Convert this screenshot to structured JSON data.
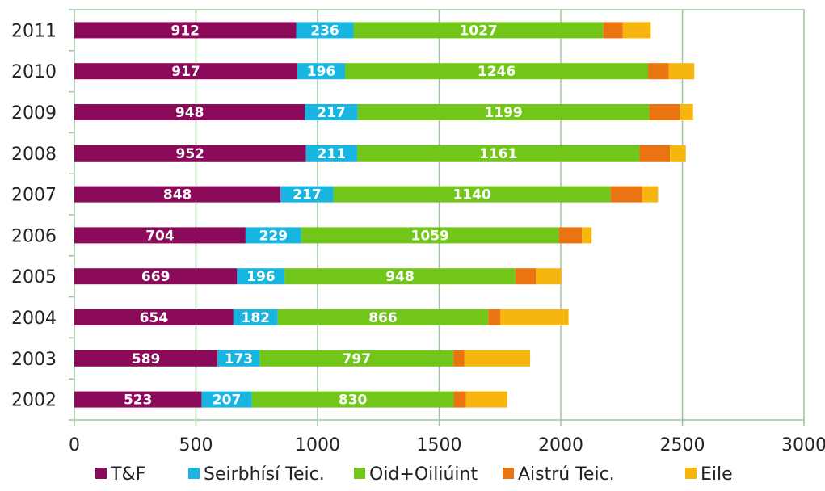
{
  "chart_data": {
    "type": "bar",
    "orientation": "horizontal",
    "stacked": true,
    "categories": [
      "2011",
      "2010",
      "2009",
      "2008",
      "2007",
      "2006",
      "2005",
      "2004",
      "2003",
      "2002"
    ],
    "series": [
      {
        "name": "T&F",
        "color": "#8B0A5A",
        "values": [
          912,
          917,
          948,
          952,
          848,
          704,
          669,
          654,
          589,
          523
        ],
        "show_labels": true
      },
      {
        "name": "Seirbhísí Teic.",
        "color": "#17B5E0",
        "values": [
          236,
          196,
          217,
          211,
          217,
          229,
          196,
          182,
          173,
          207
        ],
        "show_labels": true
      },
      {
        "name": "Oid+Oiliúint",
        "color": "#72C61A",
        "values": [
          1027,
          1246,
          1199,
          1161,
          1140,
          1059,
          948,
          866,
          797,
          830
        ],
        "show_labels": true
      },
      {
        "name": "Aistrú Teic.",
        "color": "#EA7312",
        "values": [
          80,
          85,
          125,
          125,
          130,
          95,
          85,
          50,
          45,
          50
        ],
        "show_labels": false
      },
      {
        "name": "Eile",
        "color": "#F6B50F",
        "values": [
          115,
          105,
          55,
          65,
          65,
          40,
          105,
          280,
          270,
          170
        ],
        "show_labels": false
      }
    ],
    "xlim": [
      0,
      3000
    ],
    "x_ticks": [
      "0",
      "500",
      "1000",
      "1500",
      "2000",
      "2500",
      "3000"
    ],
    "grid": true,
    "legend_position": "bottom",
    "title": "",
    "xlabel": "",
    "ylabel": ""
  }
}
